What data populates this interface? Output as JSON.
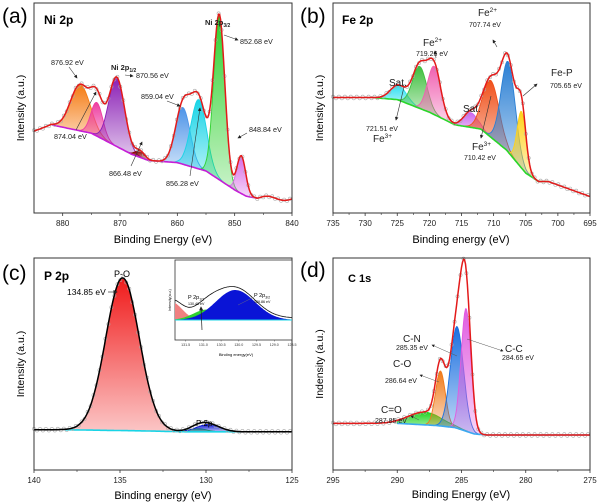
{
  "chart_data": [
    {
      "id": "a",
      "type": "area",
      "panel_label": "(a)",
      "title": "Ni 2p",
      "xlabel": "Binding Energy (eV)",
      "ylabel": "Intensity (a.u.)",
      "xlim": [
        885,
        840
      ],
      "xticks": [
        880,
        870,
        860,
        850,
        840
      ],
      "ylim": [
        0,
        1
      ],
      "background": {
        "color": "#c51ed6",
        "x": [
          882,
          875,
          868,
          865,
          860,
          855,
          850,
          848,
          846
        ],
        "y": [
          0.42,
          0.38,
          0.28,
          0.25,
          0.24,
          0.2,
          0.11,
          0.08,
          0.07
        ]
      },
      "envelope_color": "#e31a1a",
      "peaks": [
        {
          "center": 876.92,
          "amp": 0.22,
          "fwhm": 4.0,
          "color": "#f57c14",
          "label": "876.92 eV"
        },
        {
          "center": 874.04,
          "amp": 0.16,
          "fwhm": 2.4,
          "color": "#ee3ea0",
          "label": "874.04 eV"
        },
        {
          "center": 870.56,
          "amp": 0.33,
          "fwhm": 3.2,
          "color": "#8a1fb5",
          "label": "870.56 eV",
          "name": "Ni 2p1/2"
        },
        {
          "center": 866.48,
          "amp": 0.03,
          "fwhm": 2.0,
          "color": "#8b0000",
          "label": "866.48 eV"
        },
        {
          "center": 859.04,
          "amp": 0.27,
          "fwhm": 3.0,
          "color": "#4d94e8",
          "label": "859.04 eV"
        },
        {
          "center": 856.28,
          "amp": 0.33,
          "fwhm": 3.2,
          "color": "#19d4e6",
          "label": "856.28 eV"
        },
        {
          "center": 852.68,
          "amp": 0.78,
          "fwhm": 2.3,
          "color": "#2ed12e",
          "label": "852.68 eV",
          "name": "Ni 2p3/2"
        },
        {
          "center": 848.84,
          "amp": 0.18,
          "fwhm": 1.8,
          "color": "#d86ae6",
          "label": "848.84 eV"
        }
      ],
      "annotations": [
        "Ni 2p1/2",
        "Ni 2p3/2",
        "876.92 eV",
        "874.04 eV",
        "870.56 eV",
        "866.48 eV",
        "859.04 eV",
        "856.28 eV",
        "852.68 eV",
        "848.84 eV"
      ]
    },
    {
      "id": "b",
      "type": "area",
      "panel_label": "(b)",
      "title": "Fe 2p",
      "xlabel": "Binding energy (eV)",
      "ylabel": "Intensity (a.u.)",
      "xlim": [
        735,
        695
      ],
      "xticks": [
        735,
        730,
        725,
        720,
        715,
        710,
        705,
        700,
        695
      ],
      "ylim": [
        0,
        1
      ],
      "background": {
        "color": "#29d629",
        "x": [
          729,
          725,
          720,
          716,
          712,
          708,
          705,
          703,
          701.5
        ],
        "y": [
          0.55,
          0.54,
          0.48,
          0.42,
          0.4,
          0.3,
          0.19,
          0.15,
          0.15
        ]
      },
      "envelope_color": "#e31a1a",
      "peaks": [
        {
          "center": 724.8,
          "amp": 0.07,
          "fwhm": 3.0,
          "color": "#2ee0f0",
          "label": "Sat."
        },
        {
          "center": 721.51,
          "amp": 0.2,
          "fwhm": 2.6,
          "color": "#3fbf3f",
          "label": "721.51 eV",
          "name": "Fe3+"
        },
        {
          "center": 719.26,
          "amp": 0.23,
          "fwhm": 2.4,
          "color": "#f060b0",
          "label": "719.26 eV",
          "name": "Fe2+"
        },
        {
          "center": 713.6,
          "amp": 0.07,
          "fwhm": 2.6,
          "color": "#cc66ee",
          "label": "Sat."
        },
        {
          "center": 710.42,
          "amp": 0.27,
          "fwhm": 3.0,
          "color": "#f0501a",
          "label": "710.42 eV",
          "name": "Fe3+"
        },
        {
          "center": 707.74,
          "amp": 0.43,
          "fwhm": 2.6,
          "color": "#2a7fd4",
          "label": "707.74 eV",
          "name": "Fe2+"
        },
        {
          "center": 705.65,
          "amp": 0.27,
          "fwhm": 1.6,
          "color": "#ffd21a",
          "label": "705.65 eV",
          "name": "Fe-P"
        }
      ],
      "annotations": [
        "Sat.",
        "Sat.",
        "Fe2+ 719.26 eV",
        "Fe2+ 707.74 eV",
        "Fe-P 705.65 eV",
        "721.51 eV Fe3+",
        "Fe3+ 710.42 eV"
      ]
    },
    {
      "id": "c",
      "type": "area",
      "panel_label": "(c)",
      "title": "P 2p",
      "xlabel": "Binding energy (eV)",
      "ylabel": "Intensity (a.u.)",
      "xlim": [
        140,
        125
      ],
      "xticks": [
        140,
        135,
        130,
        125
      ],
      "ylim": [
        0,
        1
      ],
      "background": {
        "color": "#19d4e6",
        "x": [
          138.3,
          134,
          131,
          128
        ],
        "y": [
          0.19,
          0.185,
          0.18,
          0.18
        ]
      },
      "envelope_color": "#000000",
      "peaks": [
        {
          "center": 134.85,
          "amp": 0.72,
          "fwhm": 2.3,
          "color": "#f01a1a",
          "label": "134.85 eV",
          "name": "P-O"
        },
        {
          "center": 130.48,
          "amp": 0.015,
          "fwhm": 1.2,
          "color": "#2ed12e",
          "label": "P 2p1/2"
        },
        {
          "center": 129.86,
          "amp": 0.035,
          "fwhm": 1.6,
          "color": "#0a14d6",
          "label": "P 2p3/2"
        }
      ],
      "annotations": [
        "P-O",
        "134.85 eV",
        "P 2p"
      ],
      "inset": {
        "xlabel": "Binding energy(eV)",
        "ylabel": "Intensity(a.u.)",
        "xlim": [
          131.8,
          128.5
        ],
        "xticks": [
          131.5,
          131.0,
          130.5,
          130.0,
          129.5,
          129.0,
          128.5
        ],
        "xtick_labels": [
          "131.5",
          "131.0",
          "130.5",
          "130.0",
          "129.5",
          "129.0",
          "128.5"
        ],
        "labels": [
          {
            "name": "P 2p1/2",
            "value": "130.48 eV"
          },
          {
            "name": "P 2p3/2",
            "value": "129.86 eV"
          }
        ]
      }
    },
    {
      "id": "d",
      "type": "area",
      "panel_label": "(d)",
      "title": "C 1s",
      "xlabel": "Binding Energy (eV)",
      "ylabel": "Indensity (a.u.)",
      "xlim": [
        295,
        275
      ],
      "xticks": [
        295,
        290,
        285,
        280,
        275
      ],
      "ylim": [
        0,
        1
      ],
      "background": {
        "color": "#3aa8f0",
        "x": [
          290,
          287,
          285.5,
          284,
          283,
          282,
          278,
          275
        ],
        "y": [
          0.22,
          0.21,
          0.2,
          0.17,
          0.165,
          0.165,
          0.165,
          0.165
        ]
      },
      "envelope_color": "#e31a1a",
      "peaks": [
        {
          "center": 287.85,
          "amp": 0.06,
          "fwhm": 3.0,
          "color": "#22d422",
          "label": "287.85 eV",
          "name": "C=O"
        },
        {
          "center": 286.64,
          "amp": 0.26,
          "fwhm": 0.9,
          "color": "#f07a1a",
          "label": "286.64 eV",
          "name": "C-O"
        },
        {
          "center": 285.35,
          "amp": 0.48,
          "fwhm": 1.2,
          "color": "#1a6fe0",
          "label": "285.35 eV",
          "name": "C-N"
        },
        {
          "center": 284.65,
          "amp": 0.58,
          "fwhm": 0.9,
          "color": "#e05ce0",
          "label": "284.65 eV",
          "name": "C-C"
        }
      ],
      "annotations": [
        "C-N 285.35 eV",
        "C-O 286.64 eV",
        "C=O 287.85 eV",
        "C-C 284.65 eV"
      ]
    }
  ],
  "labels": {
    "a": {
      "panel": "(a)",
      "title": "Ni 2p",
      "xlabel": "Binding Energy (eV)",
      "ylabel": "Intensity (a.u.)",
      "p1": "876.92 eV",
      "p2": "874.04 eV",
      "p3n": "Ni 2p",
      "p3s": "1/2",
      "p3": "870.56 eV",
      "p4": "866.48 eV",
      "p5": "859.04 eV",
      "p6": "856.28 eV",
      "p7n": "Ni 2p",
      "p7s": "3/2",
      "p7": "852.68 eV",
      "p8": "848.84 eV"
    },
    "b": {
      "panel": "(b)",
      "title": "Fe 2p",
      "xlabel": "Binding energy (eV)",
      "ylabel": "Intensity (a.u.)",
      "sat1": "Sat.",
      "sat2": "Sat.",
      "fe2a": "Fe",
      "fe2a_sup": "2+",
      "fe2a_v": "719.26 eV",
      "fe2b": "Fe",
      "fe2b_sup": "2+",
      "fe2b_v": "707.74 eV",
      "fep": "Fe-P",
      "fep_v": "705.65 eV",
      "fe3a_v": "721.51 eV",
      "fe3a": "Fe",
      "fe3a_sup": "3+",
      "fe3b": "Fe",
      "fe3b_sup": "3+",
      "fe3b_v": "710.42 eV"
    },
    "c": {
      "panel": "(c)",
      "title": "P 2p",
      "xlabel": "Binding energy (eV)",
      "ylabel": "Intensity (a.u.)",
      "po": "P-O",
      "po_v": "134.85 eV",
      "p2p": "P 2p",
      "in_p1": "P 2p",
      "in_p1s": "1/2",
      "in_p1v": "130.48 eV",
      "in_p2": "P 2p",
      "in_p2s": "3/2",
      "in_p2v": "129.86 eV",
      "in_xlabel": "Binding energy(eV)",
      "in_ylabel": "Intensity(a.u.)"
    },
    "d": {
      "panel": "(d)",
      "title": "C 1s",
      "xlabel": "Binding Energy (eV)",
      "ylabel": "Indensity (a.u.)",
      "cn": "C-N",
      "cn_v": "285.35 eV",
      "co": "C-O",
      "co_v": "286.64 eV",
      "cdo": "C=O",
      "cdo_v": "287.85 eV",
      "cc": "C-C",
      "cc_v": "284.65 eV"
    }
  }
}
